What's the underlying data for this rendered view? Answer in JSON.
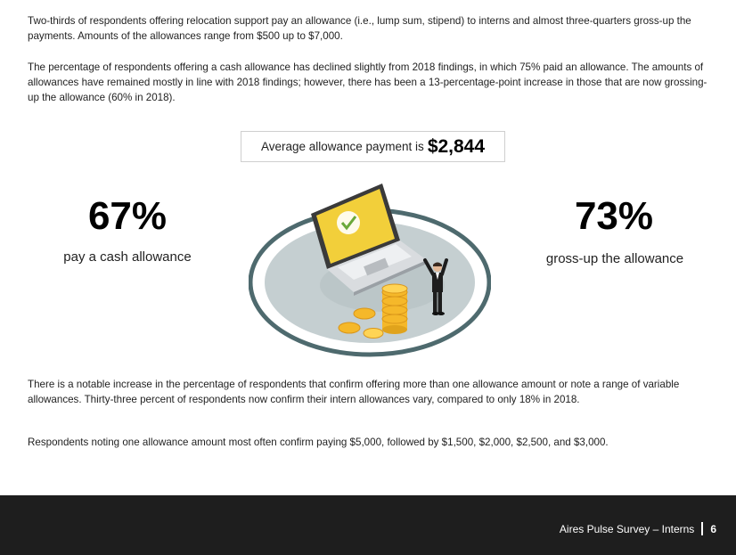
{
  "paragraphs": {
    "p1": "Two-thirds of respondents offering relocation support pay an allowance (i.e., lump sum, stipend) to interns and almost three-quarters gross-up the payments. Amounts of the allowances range from $500 up to $7,000.",
    "p2": "The percentage of respondents offering a cash allowance has declined slightly from 2018 findings, in which 75% paid an allowance. The amounts of allowances have remained mostly in line with 2018 findings; however, there has been a 13-percentage-point increase in those that are now grossing-up the allowance (60% in 2018).",
    "p3": "There is a notable increase in the percentage of respondents that confirm offering more than one allowance amount or note a range of variable allowances. Thirty-three percent of respondents now confirm their intern allowances vary, compared to only 18% in 2018.",
    "p4": "Respondents noting one allowance amount most often confirm paying $5,000, followed by $1,500, $2,000, $2,500, and $3,000."
  },
  "average": {
    "label": "Average allowance payment is",
    "amount": "$2,844"
  },
  "stats": [
    {
      "value": "67%",
      "label": "pay a cash allowance"
    },
    {
      "value": "73%",
      "label": "gross-up the allowance"
    }
  ],
  "illustration": {
    "icon": "laptop-with-coins-and-businessman-illustration",
    "colors": {
      "ring": "#4e6a6e",
      "platform": "#c5cfd1",
      "screen": "#f2cf3a",
      "coin": "#f5b82a"
    }
  },
  "footer": {
    "title": "Aires Pulse Survey – Interns",
    "page": "6"
  }
}
